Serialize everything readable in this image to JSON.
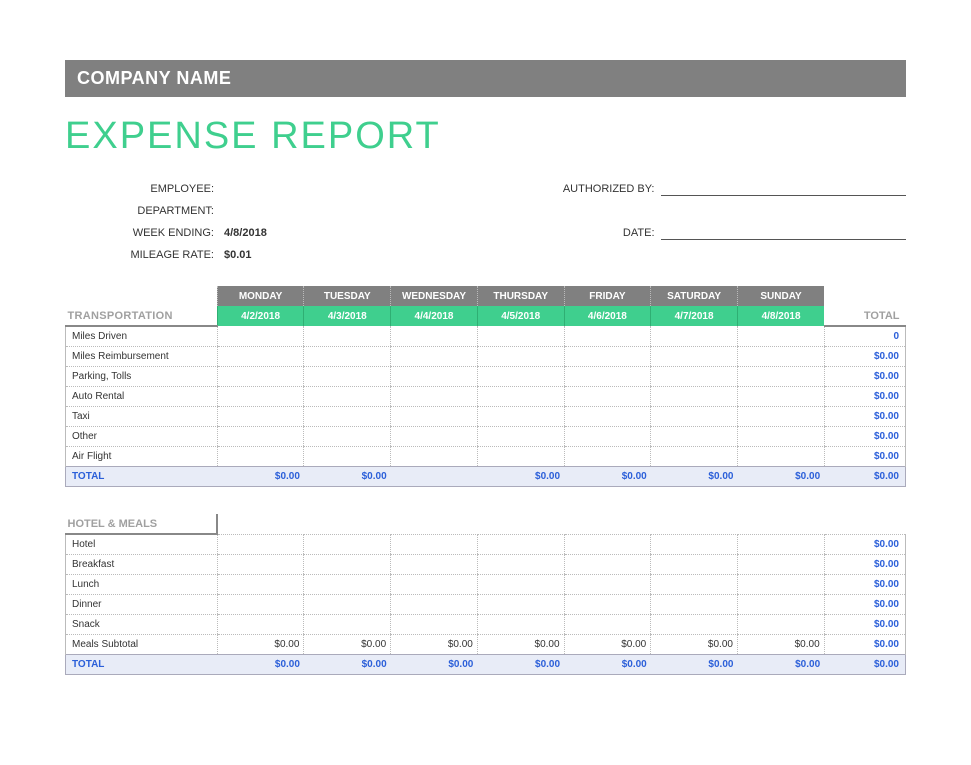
{
  "company_name": "COMPANY NAME",
  "title": "EXPENSE REPORT",
  "meta": {
    "left": [
      {
        "label": "EMPLOYEE:",
        "value": ""
      },
      {
        "label": "DEPARTMENT:",
        "value": ""
      },
      {
        "label": "WEEK ENDING:",
        "value": "4/8/2018"
      },
      {
        "label": "MILEAGE RATE:",
        "value": "$0.01"
      }
    ],
    "right": [
      {
        "label": "AUTHORIZED BY:",
        "value": "",
        "underline": true
      },
      {
        "label": "",
        "value": ""
      },
      {
        "label": "DATE:",
        "value": "",
        "underline": true
      }
    ]
  },
  "days": [
    "MONDAY",
    "TUESDAY",
    "WEDNESDAY",
    "THURSDAY",
    "FRIDAY",
    "SATURDAY",
    "SUNDAY"
  ],
  "dates": [
    "4/2/2018",
    "4/3/2018",
    "4/4/2018",
    "4/5/2018",
    "4/6/2018",
    "4/7/2018",
    "4/8/2018"
  ],
  "total_label": "TOTAL",
  "sections": [
    {
      "name": "TRANSPORTATION",
      "show_dates": true,
      "rows": [
        {
          "label": "Miles Driven",
          "cells": [
            "",
            "",
            "",
            "",
            "",
            "",
            ""
          ],
          "row_total": "0"
        },
        {
          "label": "Miles Reimbursement",
          "cells": [
            "",
            "",
            "",
            "",
            "",
            "",
            ""
          ],
          "row_total": "$0.00"
        },
        {
          "label": "Parking, Tolls",
          "cells": [
            "",
            "",
            "",
            "",
            "",
            "",
            ""
          ],
          "row_total": "$0.00"
        },
        {
          "label": "Auto Rental",
          "cells": [
            "",
            "",
            "",
            "",
            "",
            "",
            ""
          ],
          "row_total": "$0.00"
        },
        {
          "label": "Taxi",
          "cells": [
            "",
            "",
            "",
            "",
            "",
            "",
            ""
          ],
          "row_total": "$0.00"
        },
        {
          "label": "Other",
          "cells": [
            "",
            "",
            "",
            "",
            "",
            "",
            ""
          ],
          "row_total": "$0.00"
        },
        {
          "label": "Air Flight",
          "cells": [
            "",
            "",
            "",
            "",
            "",
            "",
            ""
          ],
          "row_total": "$0.00"
        }
      ],
      "totals": {
        "label": "TOTAL",
        "cells": [
          "$0.00",
          "$0.00",
          "",
          "$0.00",
          "$0.00",
          "$0.00",
          "$0.00"
        ],
        "row_total": "$0.00"
      }
    },
    {
      "name": "HOTEL & MEALS",
      "show_dates": false,
      "rows": [
        {
          "label": "Hotel",
          "cells": [
            "",
            "",
            "",
            "",
            "",
            "",
            ""
          ],
          "row_total": "$0.00"
        },
        {
          "label": "Breakfast",
          "cells": [
            "",
            "",
            "",
            "",
            "",
            "",
            ""
          ],
          "row_total": "$0.00"
        },
        {
          "label": "Lunch",
          "cells": [
            "",
            "",
            "",
            "",
            "",
            "",
            ""
          ],
          "row_total": "$0.00"
        },
        {
          "label": "Dinner",
          "cells": [
            "",
            "",
            "",
            "",
            "",
            "",
            ""
          ],
          "row_total": "$0.00"
        },
        {
          "label": "Snack",
          "cells": [
            "",
            "",
            "",
            "",
            "",
            "",
            ""
          ],
          "row_total": "$0.00"
        },
        {
          "label": "Meals Subtotal",
          "cells": [
            "$0.00",
            "$0.00",
            "$0.00",
            "$0.00",
            "$0.00",
            "$0.00",
            "$0.00"
          ],
          "row_total": "$0.00"
        }
      ],
      "totals": {
        "label": "TOTAL",
        "cells": [
          "$0.00",
          "$0.00",
          "$0.00",
          "$0.00",
          "$0.00",
          "$0.00",
          "$0.00"
        ],
        "row_total": "$0.00"
      }
    }
  ],
  "colors": {
    "company_bar_bg": "#808080",
    "title_color": "#3fcf8e",
    "date_row_bg": "#3fcf8e",
    "link_blue": "#2b5fd9",
    "totals_bg": "#e8ecf7",
    "section_label_color": "#a0a0a0"
  }
}
